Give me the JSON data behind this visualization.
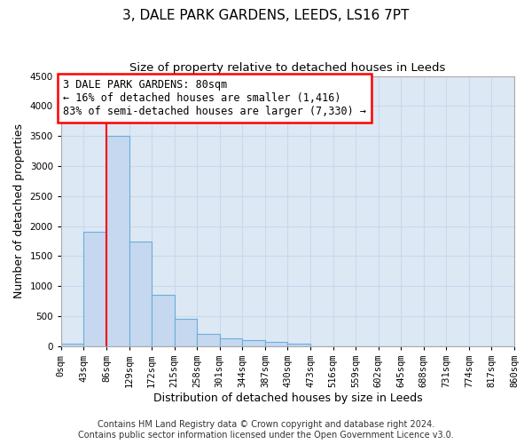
{
  "title": "3, DALE PARK GARDENS, LEEDS, LS16 7PT",
  "subtitle": "Size of property relative to detached houses in Leeds",
  "xlabel": "Distribution of detached houses by size in Leeds",
  "ylabel": "Number of detached properties",
  "bin_edges": [
    0,
    43,
    86,
    129,
    172,
    215,
    258,
    301,
    344,
    387,
    430,
    473,
    516,
    559,
    602,
    645,
    688,
    731,
    774,
    817,
    860
  ],
  "bar_heights": [
    50,
    1900,
    3500,
    1750,
    850,
    450,
    200,
    125,
    100,
    75,
    50,
    0,
    0,
    0,
    0,
    0,
    0,
    0,
    0,
    0
  ],
  "bar_color": "#c5d8f0",
  "bar_edgecolor": "#6baed6",
  "property_line_x": 86,
  "property_line_color": "red",
  "ylim": [
    0,
    4500
  ],
  "yticks": [
    0,
    500,
    1000,
    1500,
    2000,
    2500,
    3000,
    3500,
    4000,
    4500
  ],
  "annotation_text": "3 DALE PARK GARDENS: 80sqm\n← 16% of detached houses are smaller (1,416)\n83% of semi-detached houses are larger (7,330) →",
  "annotation_box_color": "white",
  "annotation_box_edgecolor": "red",
  "footer_line1": "Contains HM Land Registry data © Crown copyright and database right 2024.",
  "footer_line2": "Contains public sector information licensed under the Open Government Licence v3.0.",
  "background_color": "#dde8f5",
  "grid_color": "#c8d8ee",
  "title_fontsize": 11,
  "subtitle_fontsize": 9.5,
  "axis_label_fontsize": 9,
  "tick_fontsize": 7.5,
  "annotation_fontsize": 8.5,
  "footer_fontsize": 7
}
